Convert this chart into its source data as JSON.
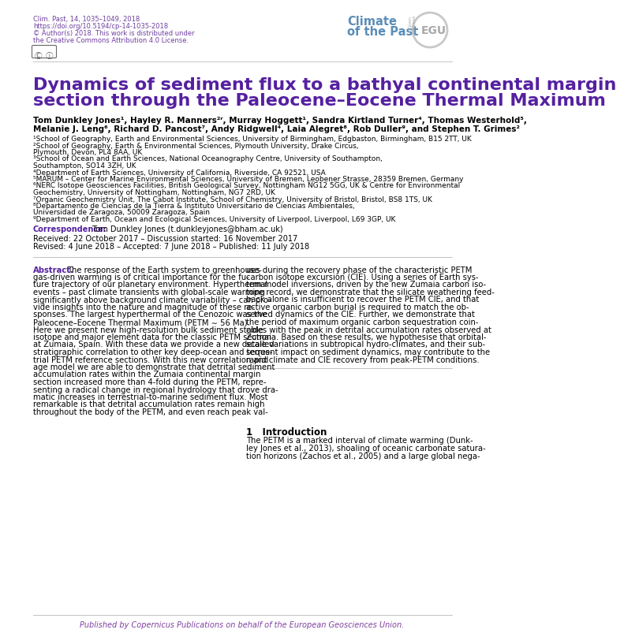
{
  "header_line1": "Clim. Past, 14, 1035–1049, 2018",
  "header_line2": "https://doi.org/10.5194/cp-14-1035-2018",
  "header_line3": "© Author(s) 2018. This work is distributed under",
  "header_line4": "the Creative Commons Attribution 4.0 License.",
  "journal_line1": "Climate",
  "journal_line2": "of the Past",
  "header_color": "#7040A0",
  "journal_color": "#5B8DB8",
  "title_line1": "Dynamics of sediment flux to a bathyal continental margin",
  "title_line2": "section through the Paleocene–Eocene Thermal Maximum",
  "title_color": "#5520A0",
  "author_line1": "Tom Dunkley Jones¹, Hayley R. Manners²ʳ, Murray Hoggett¹, Sandra Kirtland Turner⁴, Thomas Westerhold⁵,",
  "author_line2": "Melanie J. Leng⁶, Richard D. Pancost⁷, Andy Ridgwell⁴, Laia Alegret⁸, Rob Duller⁹, and Stephen T. Grimes²",
  "affiliations": [
    "¹School of Geography, Earth and Environmental Sciences, University of Birmingham, Edgbaston, Birmingham, B15 2TT, UK",
    "²School of Geography, Earth & Environmental Sciences, Plymouth University, Drake Circus,",
    "Plymouth, Devon, PL4 8AA, UK",
    "³School of Ocean and Earth Sciences, National Oceanography Centre, University of Southampton,",
    "Southampton, SO14 3ZH, UK",
    "⁴Department of Earth Sciences, University of California, Riverside, CA 92521, USA",
    "⁵MARUM – Center for Marine Environmental Sciences, University of Bremen, Leobener Strasse, 28359 Bremen, Germany",
    "⁶NERC Isotope Geosciences Facilities, British Geological Survey, Nottingham NG12 5GG, UK & Centre for Environmental",
    "Geochemistry, University of Nottingham, Nottingham, NG7 2RD, UK",
    "⁷Organic Geochemistry Unit, The Cabot Institute, School of Chemistry, University of Bristol, Bristol, BS8 1TS, UK",
    "⁸Departamento de Ciencias de la Tierra & Instituto Universitario de Ciencias Ambientales,",
    "Universidad de Zaragoza, 50009 Zaragoza, Spain",
    "⁹Department of Earth, Ocean and Ecological Sciences, University of Liverpool, Liverpool, L69 3GP, UK"
  ],
  "corr_label": "Correspondence:",
  "corr_text": " Tom Dunkley Jones (t.dunkleyjones@bham.ac.uk)",
  "received_line1": "Received: 22 October 2017 – Discussion started: 16 November 2017",
  "received_line2": "Revised: 4 June 2018 – Accepted: 7 June 2018 – Published: 11 July 2018",
  "abstract_label": "Abstract.",
  "abstract_left": [
    "The response of the Earth system to greenhouse-",
    "gas-driven warming is of critical importance for the fu-",
    "ture trajectory of our planetary environment. Hyperthermal",
    "events – past climate transients with global-scale warming",
    "significantly above background climate variability – can pro-",
    "vide insights into the nature and magnitude of these re-",
    "sponses. The largest hyperthermal of the Cenozoic was the",
    "Paleocene–Eocene Thermal Maximum (PETM ∼ 56 Ma).",
    "Here we present new high-resolution bulk sediment stable",
    "isotope and major element data for the classic PETM section",
    "at Zumaia, Spain. With these data we provide a new detailed",
    "stratigraphic correlation to other key deep-ocean and terres-",
    "trial PETM reference sections. With this new correlation and",
    "age model we are able to demonstrate that detrital sediment",
    "accumulation rates within the Zumaia continental margin",
    "section increased more than 4-fold during the PETM, repre-",
    "senting a radical change in regional hydrology that drove dra-",
    "matic increases in terrestrial-to-marine sediment flux. Most",
    "remarkable is that detrital accumulation rates remain high",
    "throughout the body of the PETM, and even reach peak val-"
  ],
  "abstract_right": [
    "ues during the recovery phase of the characteristic PETM",
    "carbon isotope excursion (CIE). Using a series of Earth sys-",
    "tem model inversions, driven by the new Zumaia carbon iso-",
    "tope record, we demonstrate that the silicate weathering feed-",
    "back alone is insufficient to recover the PETM CIE, and that",
    "active organic carbon burial is required to match the ob-",
    "served dynamics of the CIE. Further, we demonstrate that",
    "the period of maximum organic carbon sequestration coin-",
    "cides with the peak in detrital accumulation rates observed at",
    "Zumaia. Based on these results, we hypothesise that orbital-",
    "scale variations in subtropical hydro-climates, and their sub-",
    "sequent impact on sediment dynamics, may contribute to the",
    "rapid climate and CIE recovery from peak-PETM conditions."
  ],
  "intro_header": "1   Introduction",
  "intro_lines": [
    "The PETM is a marked interval of climate warming (Dunk-",
    "ley Jones et al., 2013), shoaling of oceanic carbonate satura-",
    "tion horizons (Zachos et al., 2005) and a large global nega-"
  ],
  "footer_text": "Published by Copernicus Publications on behalf of the European Geosciences Union.",
  "footer_color": "#8040A0",
  "text_color": "#000000",
  "bg_color": "#ffffff"
}
